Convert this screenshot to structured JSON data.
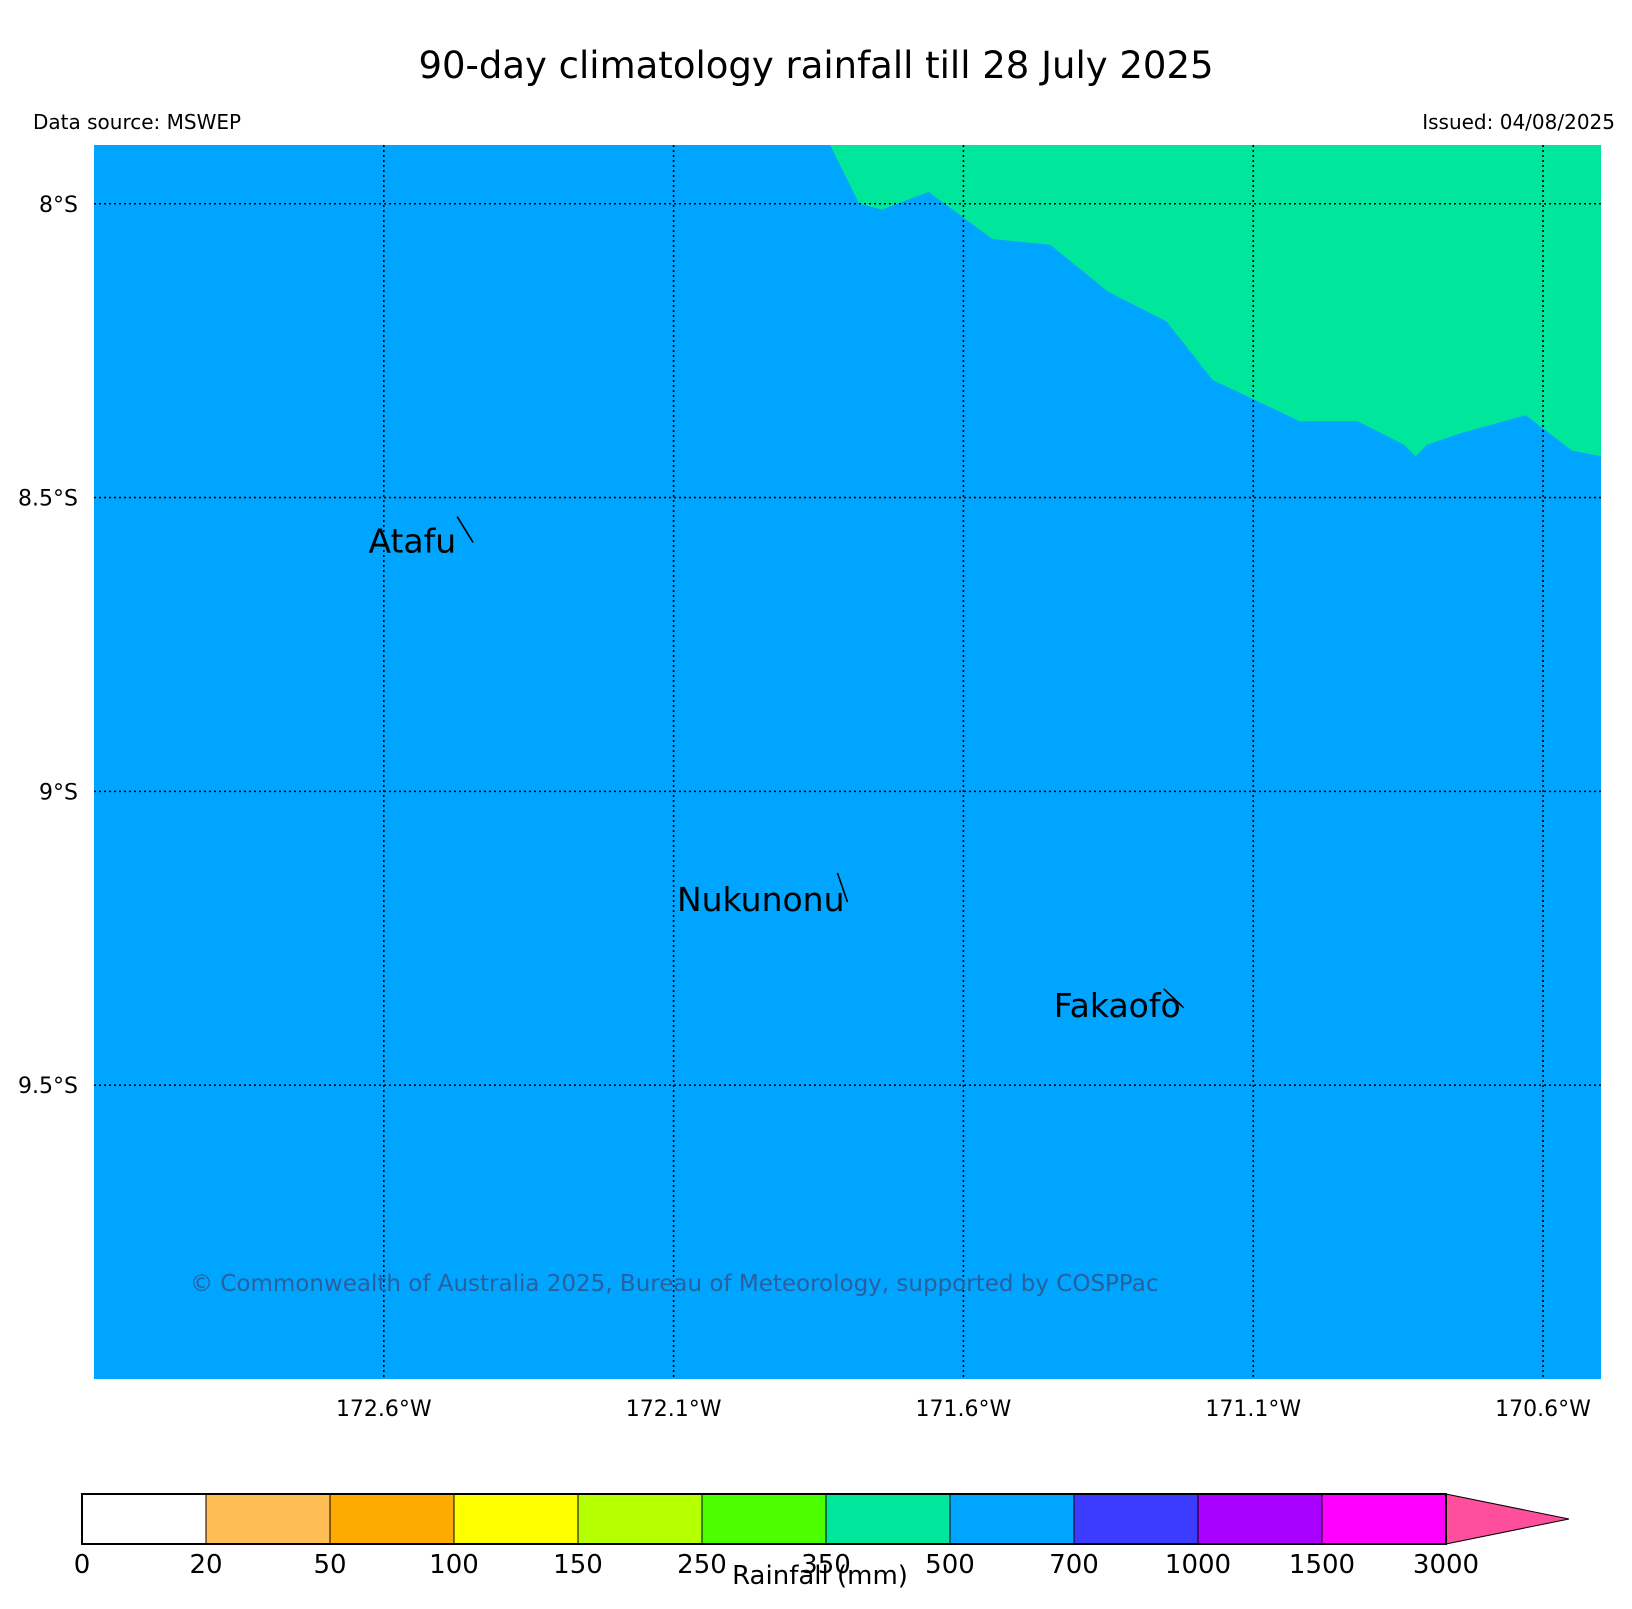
{
  "title": "90-day climatology rainfall till 28 July 2025",
  "data_source": "Data source: MSWEP",
  "issued": "Issued: 04/08/2025",
  "copyright": "© Commonwealth of Australia 2025, Bureau of Meteorology, supported by COSPPac",
  "map": {
    "lat_ticks": [
      {
        "value": -8.0,
        "label": "8°S"
      },
      {
        "value": -8.5,
        "label": "8.5°S"
      },
      {
        "value": -9.0,
        "label": "9°S"
      },
      {
        "value": -9.5,
        "label": "9.5°S"
      }
    ],
    "lon_ticks": [
      {
        "value": -172.6,
        "label": "172.6°W"
      },
      {
        "value": -172.1,
        "label": "172.1°W"
      },
      {
        "value": -171.6,
        "label": "171.6°W"
      },
      {
        "value": -171.1,
        "label": "171.1°W"
      },
      {
        "value": -170.6,
        "label": "170.6°W"
      }
    ],
    "extent": {
      "lon_min": -173.1,
      "lon_max": -170.5,
      "lat_min": -10.0,
      "lat_max": -7.9
    },
    "background_color": "#00a5ff",
    "region_350_500_color": "#00e69a",
    "region_350_500_boundary": [
      [
        -171.83,
        -7.9
      ],
      [
        -171.78,
        -8.0
      ],
      [
        -171.74,
        -8.01
      ],
      [
        -171.66,
        -7.98
      ],
      [
        -171.55,
        -8.06
      ],
      [
        -171.45,
        -8.07
      ],
      [
        -171.35,
        -8.15
      ],
      [
        -171.25,
        -8.2
      ],
      [
        -171.17,
        -8.3
      ],
      [
        -171.02,
        -8.37
      ],
      [
        -170.92,
        -8.37
      ],
      [
        -170.84,
        -8.41
      ],
      [
        -170.82,
        -8.43
      ],
      [
        -170.8,
        -8.41
      ],
      [
        -170.74,
        -8.39
      ],
      [
        -170.63,
        -8.36
      ],
      [
        -170.55,
        -8.42
      ],
      [
        -170.5,
        -8.43
      ],
      [
        -170.5,
        -7.9
      ]
    ],
    "places": [
      {
        "name": "Atafu",
        "lon": -172.47,
        "lat": -8.58
      },
      {
        "name": "Nukunonu",
        "lon": -171.8,
        "lat": -9.19
      },
      {
        "name": "Fakaofo",
        "lon": -171.22,
        "lat": -9.37
      }
    ]
  },
  "colorbar": {
    "label": "Rainfall (mm)",
    "ticks": [
      "0",
      "20",
      "50",
      "100",
      "150",
      "250",
      "350",
      "500",
      "700",
      "1000",
      "1500",
      "3000"
    ],
    "colors": [
      "#ffffff",
      "#ffbe55",
      "#ffaa00",
      "#ffff00",
      "#b4ff00",
      "#4bff00",
      "#00e69a",
      "#00a5ff",
      "#3c3cff",
      "#aa00ff",
      "#ff00ff"
    ],
    "extend_color": "#ff4f9c"
  }
}
